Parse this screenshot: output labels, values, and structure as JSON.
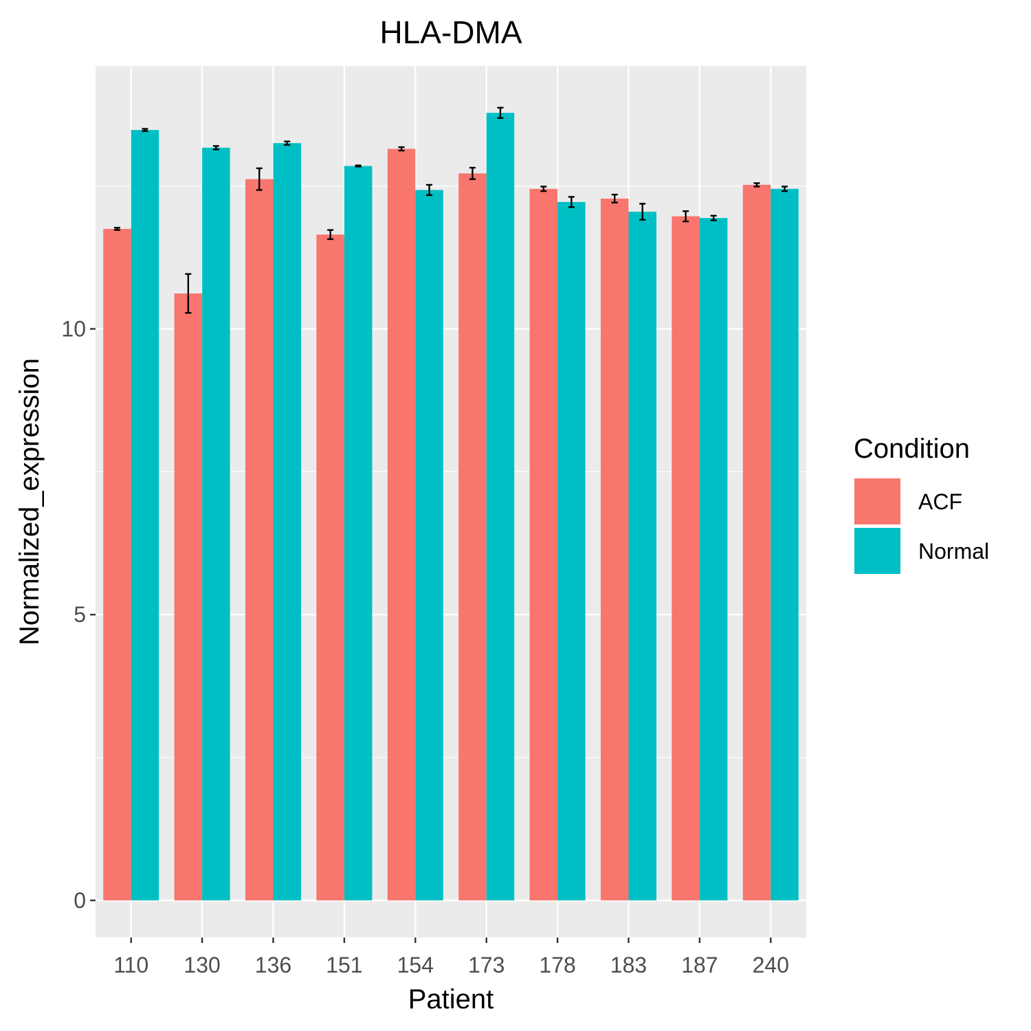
{
  "chart_data": {
    "type": "bar",
    "title": "HLA-DMA",
    "xlabel": "Patient",
    "ylabel": "Normalized_expression",
    "categories": [
      "110",
      "130",
      "136",
      "151",
      "154",
      "173",
      "178",
      "183",
      "187",
      "240"
    ],
    "series": [
      {
        "name": "ACF",
        "color": "#F8766D",
        "values": [
          11.75,
          10.62,
          12.62,
          11.65,
          13.15,
          12.72,
          12.45,
          12.28,
          11.97,
          12.52
        ],
        "errors": [
          0.02,
          0.34,
          0.19,
          0.08,
          0.03,
          0.1,
          0.04,
          0.07,
          0.09,
          0.03
        ]
      },
      {
        "name": "Normal",
        "color": "#00BFC4",
        "values": [
          13.48,
          13.17,
          13.25,
          12.85,
          12.43,
          13.78,
          12.22,
          12.05,
          11.94,
          12.45
        ],
        "errors": [
          0.02,
          0.03,
          0.03,
          0.01,
          0.09,
          0.09,
          0.09,
          0.14,
          0.04,
          0.04
        ]
      }
    ],
    "ylim": [
      -0.65,
      14.6
    ],
    "yticks": [
      "0",
      "5",
      "10"
    ],
    "grid": true,
    "legend": {
      "title": "Condition",
      "position": "right"
    }
  }
}
